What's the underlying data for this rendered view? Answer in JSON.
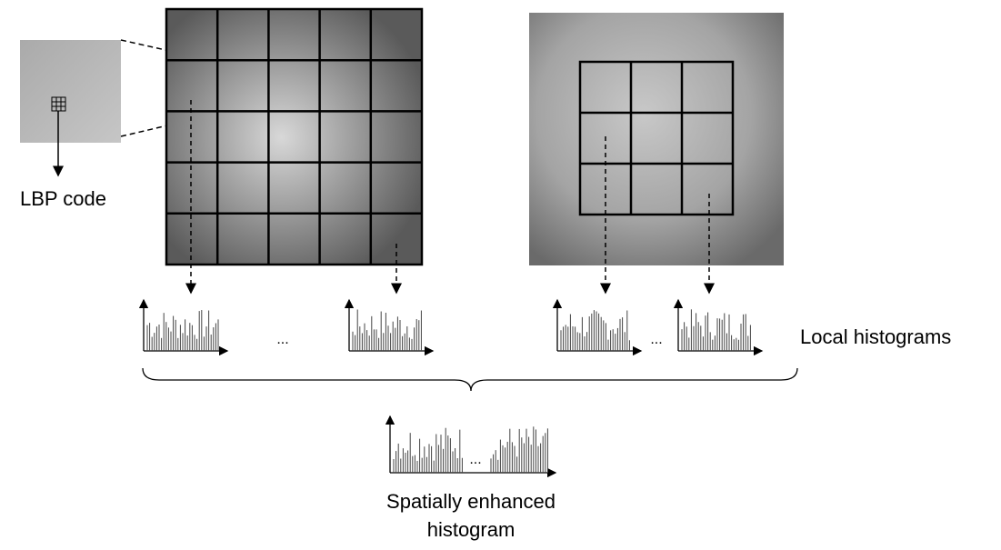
{
  "labels": {
    "lbp_code": "LBP code",
    "local_histograms": "Local histograms",
    "enhanced_line1": "Spatially enhanced",
    "enhanced_line2": "histogram"
  },
  "ellipses": [
    "...",
    "...",
    "..."
  ]
}
